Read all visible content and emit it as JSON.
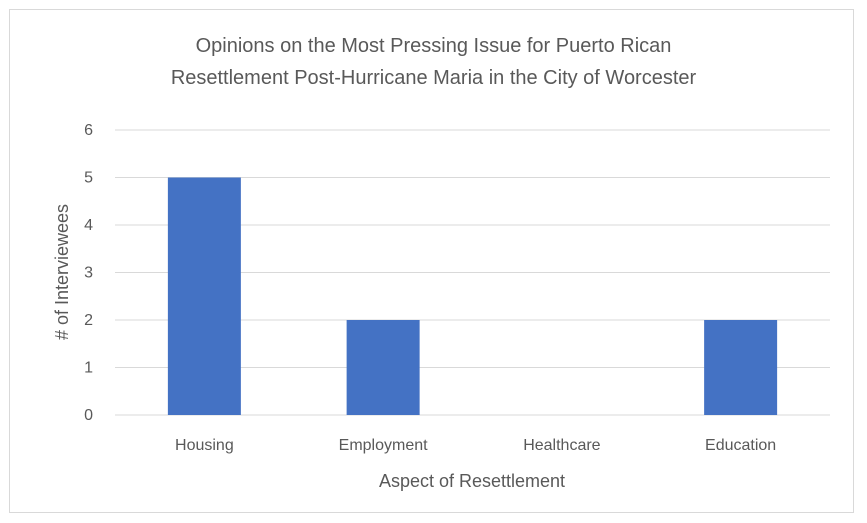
{
  "chart_data": {
    "type": "bar",
    "title": "Opinions on the Most Pressing Issue for Puerto Rican Resettlement Post-Hurricane Maria in the City of Worcester",
    "title_lines": [
      "Opinions on the Most Pressing Issue for Puerto Rican",
      "Resettlement  Post-Hurricane Maria in the City of Worcester"
    ],
    "categories": [
      "Housing",
      "Employment",
      "Healthcare",
      "Education"
    ],
    "values": [
      5,
      2,
      0,
      2
    ],
    "xlabel": "Aspect of Resettlement",
    "ylabel": "# of Interviewees",
    "ylim": [
      0,
      6
    ],
    "yticks": [
      "0",
      "1",
      "2",
      "3",
      "4",
      "5",
      "6"
    ],
    "grid": true,
    "legend": "none",
    "bar_color": "#4472c4"
  }
}
